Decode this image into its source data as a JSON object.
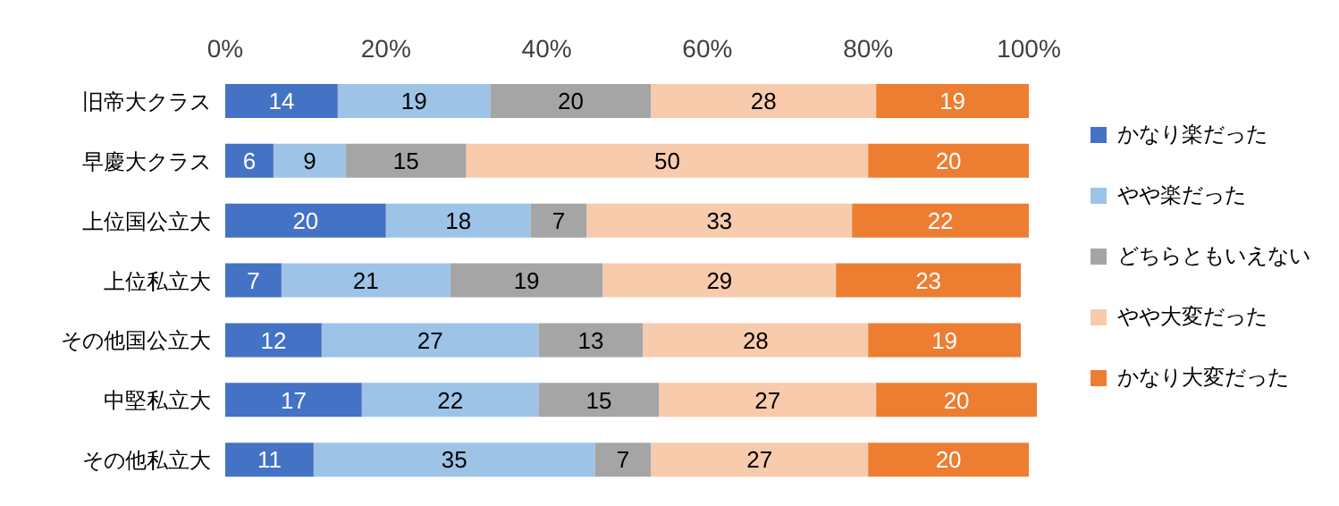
{
  "chart_data": {
    "type": "bar",
    "orientation": "horizontal",
    "stacked": true,
    "data_labels": true,
    "legend": "right",
    "grid": false,
    "categories": [
      "旧帝大クラス",
      "早慶大クラス",
      "上位国公立大",
      "上位私立大",
      "その他国公立大",
      "中堅私立大",
      "その他私立大"
    ],
    "xlim": [
      0,
      101
    ],
    "xticks": [
      {
        "value": 0,
        "label": "0%"
      },
      {
        "value": 20,
        "label": "20%"
      },
      {
        "value": 40,
        "label": "40%"
      },
      {
        "value": 60,
        "label": "60%"
      },
      {
        "value": 80,
        "label": "80%"
      },
      {
        "value": 100,
        "label": "100%"
      }
    ],
    "series": [
      {
        "name": "かなり楽だった",
        "color": "#4472c4",
        "values": [
          14,
          6,
          20,
          7,
          12,
          17,
          11
        ]
      },
      {
        "name": "やや楽だった",
        "color": "#9dc3e6",
        "values": [
          19,
          9,
          18,
          21,
          27,
          22,
          35
        ]
      },
      {
        "name": "どちらともいえない",
        "color": "#a5a5a5",
        "values": [
          20,
          15,
          7,
          19,
          13,
          15,
          7
        ]
      },
      {
        "name": "やや大変だった",
        "color": "#f8cbad",
        "values": [
          28,
          50,
          33,
          29,
          28,
          27,
          27
        ]
      },
      {
        "name": "かなり大変だった",
        "color": "#ed7d31",
        "values": [
          19,
          20,
          22,
          23,
          19,
          20,
          20
        ]
      }
    ]
  }
}
